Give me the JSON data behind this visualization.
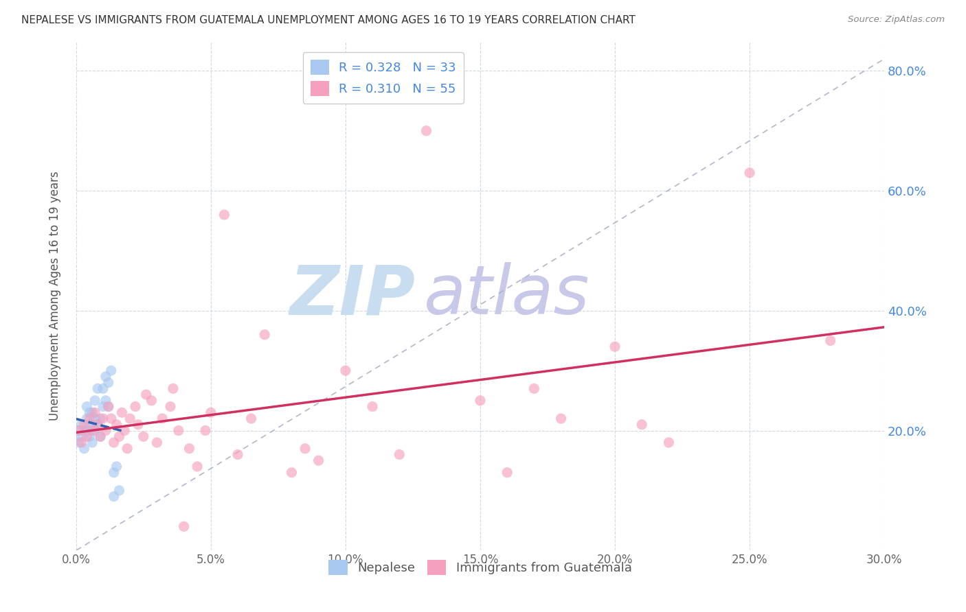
{
  "title": "NEPALESE VS IMMIGRANTS FROM GUATEMALA UNEMPLOYMENT AMONG AGES 16 TO 19 YEARS CORRELATION CHART",
  "source": "Source: ZipAtlas.com",
  "ylabel": "Unemployment Among Ages 16 to 19 years",
  "legend_label1": "Nepalese",
  "legend_label2": "Immigrants from Guatemala",
  "r1": 0.328,
  "n1": 33,
  "r2": 0.31,
  "n2": 55,
  "color1": "#a8c8f0",
  "color2": "#f5a0be",
  "trend1_color": "#3060b0",
  "trend2_color": "#d03060",
  "ref_line_color": "#b0b8c8",
  "xmin": 0.0,
  "xmax": 0.3,
  "ymin": 0.0,
  "ymax": 0.85,
  "x_ticks": [
    0.0,
    0.05,
    0.1,
    0.15,
    0.2,
    0.25,
    0.3
  ],
  "y_ticks": [
    0.2,
    0.4,
    0.6,
    0.8
  ],
  "nepalese_x": [
    0.001,
    0.001,
    0.002,
    0.002,
    0.003,
    0.003,
    0.004,
    0.004,
    0.004,
    0.005,
    0.005,
    0.005,
    0.006,
    0.006,
    0.006,
    0.007,
    0.007,
    0.007,
    0.008,
    0.008,
    0.009,
    0.009,
    0.01,
    0.01,
    0.011,
    0.011,
    0.012,
    0.012,
    0.013,
    0.014,
    0.014,
    0.015,
    0.016
  ],
  "nepalese_y": [
    0.18,
    0.2,
    0.19,
    0.21,
    0.17,
    0.2,
    0.2,
    0.22,
    0.24,
    0.19,
    0.21,
    0.23,
    0.18,
    0.21,
    0.23,
    0.2,
    0.22,
    0.25,
    0.21,
    0.27,
    0.19,
    0.22,
    0.24,
    0.27,
    0.25,
    0.29,
    0.24,
    0.28,
    0.3,
    0.09,
    0.13,
    0.14,
    0.1
  ],
  "guatemala_x": [
    0.001,
    0.002,
    0.003,
    0.004,
    0.005,
    0.006,
    0.007,
    0.008,
    0.009,
    0.01,
    0.011,
    0.012,
    0.013,
    0.014,
    0.015,
    0.016,
    0.017,
    0.018,
    0.019,
    0.02,
    0.022,
    0.023,
    0.025,
    0.026,
    0.028,
    0.03,
    0.032,
    0.035,
    0.036,
    0.038,
    0.04,
    0.042,
    0.045,
    0.048,
    0.05,
    0.055,
    0.06,
    0.065,
    0.07,
    0.08,
    0.085,
    0.09,
    0.1,
    0.11,
    0.12,
    0.13,
    0.15,
    0.16,
    0.17,
    0.18,
    0.2,
    0.21,
    0.22,
    0.25,
    0.28
  ],
  "guatemala_y": [
    0.2,
    0.18,
    0.21,
    0.19,
    0.22,
    0.2,
    0.23,
    0.21,
    0.19,
    0.22,
    0.2,
    0.24,
    0.22,
    0.18,
    0.21,
    0.19,
    0.23,
    0.2,
    0.17,
    0.22,
    0.24,
    0.21,
    0.19,
    0.26,
    0.25,
    0.18,
    0.22,
    0.24,
    0.27,
    0.2,
    0.04,
    0.17,
    0.14,
    0.2,
    0.23,
    0.56,
    0.16,
    0.22,
    0.36,
    0.13,
    0.17,
    0.15,
    0.3,
    0.24,
    0.16,
    0.7,
    0.25,
    0.13,
    0.27,
    0.22,
    0.34,
    0.21,
    0.18,
    0.63,
    0.35
  ],
  "bg_color": "#ffffff",
  "grid_color": "#d0d8e0",
  "title_color": "#333333",
  "axis_label_color": "#555555",
  "right_axis_color": "#4488dd",
  "watermark_zip_color": "#c8ddf0",
  "watermark_atlas_color": "#c8c8e8",
  "watermark_fontsize": 72,
  "marker_size": 120
}
